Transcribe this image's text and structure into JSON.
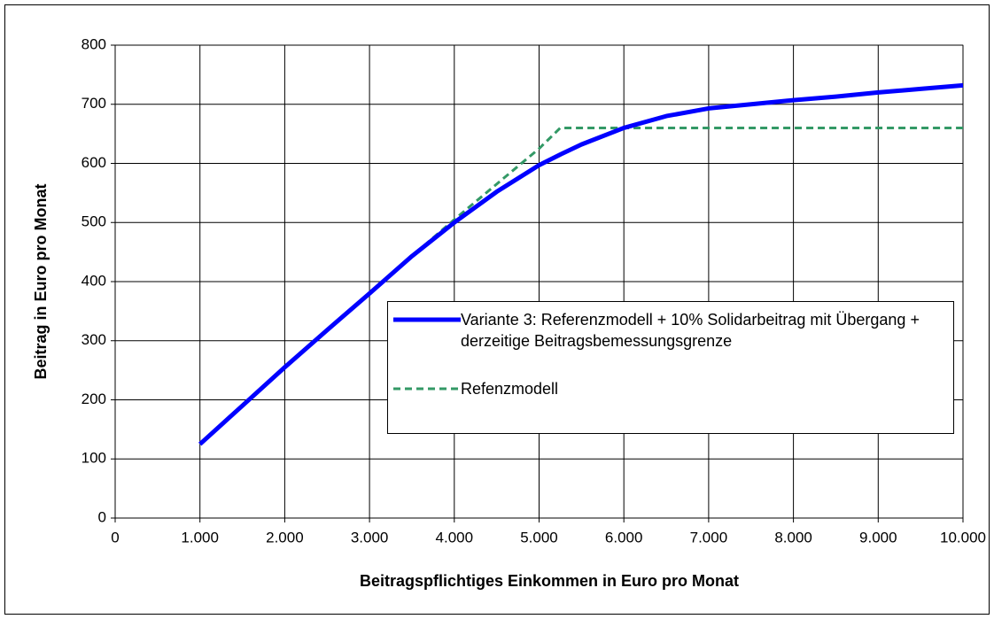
{
  "chart_data": {
    "type": "line",
    "xlabel": "Beitragspflichtiges Einkommen in Euro pro Monat",
    "ylabel": "Beitrag in Euro pro Monat",
    "x": [
      1000,
      1500,
      2000,
      2500,
      3000,
      3500,
      4000,
      4500,
      5000,
      5250,
      5500,
      6000,
      6500,
      7000,
      7500,
      8000,
      8500,
      9000,
      9500,
      10000
    ],
    "series": [
      {
        "name": "Variante 3: Referenzmodell + 10% Solidarbeitrag mit Übergang + derzeitige Beitragsbemessungsgrenze",
        "color": "#0000ff",
        "dashed": false,
        "values": [
          125,
          190,
          255,
          318,
          380,
          443,
          500,
          552,
          597,
          615,
          632,
          660,
          680,
          693,
          700,
          707,
          713,
          720,
          726,
          732
        ]
      },
      {
        "name": "Refenzmodell",
        "color": "#339966",
        "dashed": true,
        "values": [
          125,
          190,
          255,
          318,
          380,
          443,
          505,
          565,
          625,
          660,
          660,
          660,
          660,
          660,
          660,
          660,
          660,
          660,
          660,
          660
        ]
      }
    ],
    "xlim": [
      0,
      10000
    ],
    "xticks": [
      0,
      {
        "value": 1000,
        "label": "1.000"
      },
      {
        "value": 2000,
        "label": "2.000"
      },
      {
        "value": 3000,
        "label": "3.000"
      },
      {
        "value": 4000,
        "label": "4.000"
      },
      {
        "value": 5000,
        "label": "5.000"
      },
      {
        "value": 6000,
        "label": "6.000"
      },
      {
        "value": 7000,
        "label": "7.000"
      },
      {
        "value": 8000,
        "label": "8.000"
      },
      {
        "value": 9000,
        "label": "9.000"
      },
      {
        "value": 10000,
        "label": "10.000"
      }
    ],
    "ylim": [
      0,
      800
    ],
    "yticks": [
      0,
      100,
      200,
      300,
      400,
      500,
      600,
      700,
      800
    ],
    "grid": true,
    "legend_position": "right"
  }
}
